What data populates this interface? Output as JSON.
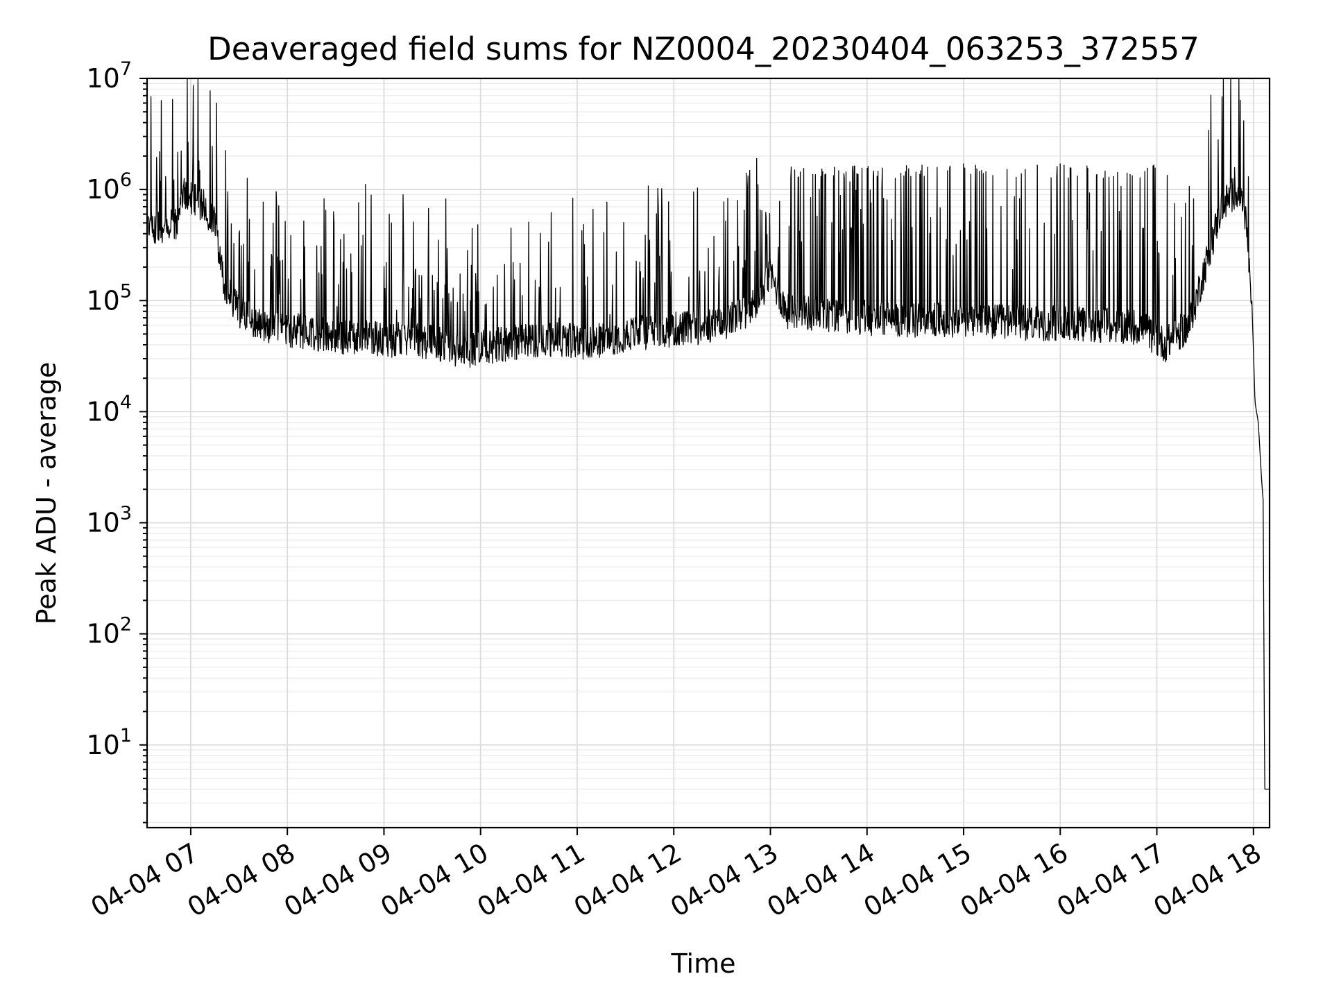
{
  "chart_data": {
    "type": "line",
    "title": "Deaveraged field sums for NZ0004_20230404_063253_372557",
    "xlabel": "Time",
    "ylabel": "Peak ADU - average",
    "yscale": "log",
    "grid": true,
    "xlim": [
      "2023-04-04 06:32:53",
      "2023-04-04 18:10:00"
    ],
    "ylim": [
      1.8,
      10000000
    ],
    "x_ticks": [
      "04-04 07",
      "04-04 08",
      "04-04 09",
      "04-04 10",
      "04-04 11",
      "04-04 12",
      "04-04 13",
      "04-04 14",
      "04-04 15",
      "04-04 16",
      "04-04 17",
      "04-04 18"
    ],
    "y_ticks": [
      {
        "value": 10,
        "base": "10",
        "exp": "1"
      },
      {
        "value": 100,
        "base": "10",
        "exp": "2"
      },
      {
        "value": 1000,
        "base": "10",
        "exp": "3"
      },
      {
        "value": 10000,
        "base": "10",
        "exp": "4"
      },
      {
        "value": 100000,
        "base": "10",
        "exp": "5"
      },
      {
        "value": 1000000,
        "base": "10",
        "exp": "6"
      },
      {
        "value": 10000000,
        "base": "10",
        "exp": "7"
      }
    ],
    "series": [
      {
        "color": "#000000",
        "baseline": [
          {
            "x": "2023-04-04 06:33",
            "y": 450000
          },
          {
            "x": "2023-04-04 06:40",
            "y": 480000
          },
          {
            "x": "2023-04-04 06:50",
            "y": 450000
          },
          {
            "x": "2023-04-04 06:55",
            "y": 900000
          },
          {
            "x": "2023-04-04 07:05",
            "y": 800000
          },
          {
            "x": "2023-04-04 07:15",
            "y": 500000
          },
          {
            "x": "2023-04-04 07:20",
            "y": 150000
          },
          {
            "x": "2023-04-04 07:30",
            "y": 80000
          },
          {
            "x": "2023-04-04 07:45",
            "y": 60000
          },
          {
            "x": "2023-04-04 08:00",
            "y": 55000
          },
          {
            "x": "2023-04-04 08:30",
            "y": 48000
          },
          {
            "x": "2023-04-04 09:00",
            "y": 45000
          },
          {
            "x": "2023-04-04 09:30",
            "y": 42000
          },
          {
            "x": "2023-04-04 09:50",
            "y": 35000
          },
          {
            "x": "2023-04-04 10:10",
            "y": 40000
          },
          {
            "x": "2023-04-04 10:40",
            "y": 45000
          },
          {
            "x": "2023-04-04 11:10",
            "y": 42000
          },
          {
            "x": "2023-04-04 11:30",
            "y": 50000
          },
          {
            "x": "2023-04-04 12:00",
            "y": 55000
          },
          {
            "x": "2023-04-04 12:30",
            "y": 60000
          },
          {
            "x": "2023-04-04 12:50",
            "y": 90000
          },
          {
            "x": "2023-04-04 13:00",
            "y": 170000
          },
          {
            "x": "2023-04-04 13:10",
            "y": 80000
          },
          {
            "x": "2023-04-04 14:00",
            "y": 70000
          },
          {
            "x": "2023-04-04 15:00",
            "y": 65000
          },
          {
            "x": "2023-04-04 16:00",
            "y": 62000
          },
          {
            "x": "2023-04-04 16:50",
            "y": 58000
          },
          {
            "x": "2023-04-04 17:05",
            "y": 40000
          },
          {
            "x": "2023-04-04 17:20",
            "y": 60000
          },
          {
            "x": "2023-04-04 17:30",
            "y": 200000
          },
          {
            "x": "2023-04-04 17:40",
            "y": 700000
          },
          {
            "x": "2023-04-04 17:50",
            "y": 1000000
          },
          {
            "x": "2023-04-04 17:55",
            "y": 600000
          },
          {
            "x": "2023-04-04 17:59",
            "y": 100000
          },
          {
            "x": "2023-04-04 18:01",
            "y": 12000
          },
          {
            "x": "2023-04-04 18:03",
            "y": 8000
          },
          {
            "x": "2023-04-04 18:05",
            "y": 2500
          },
          {
            "x": "2023-04-04 18:06",
            "y": 1600
          },
          {
            "x": "2023-04-04 18:07",
            "y": 4
          },
          {
            "x": "2023-04-04 18:10",
            "y": 4
          }
        ],
        "spikes": [
          {
            "x": "2023-04-04 07:16",
            "y": 6000000
          },
          {
            "x": "2023-04-04 13:15",
            "y": 1500000
          },
          {
            "x": "2023-04-04 14:00",
            "y": 1550000
          },
          {
            "x": "2023-04-04 15:00",
            "y": 1700000
          },
          {
            "x": "2023-04-04 16:00",
            "y": 1700000
          },
          {
            "x": "2023-04-04 17:38",
            "y": 2800000
          }
        ]
      }
    ]
  }
}
